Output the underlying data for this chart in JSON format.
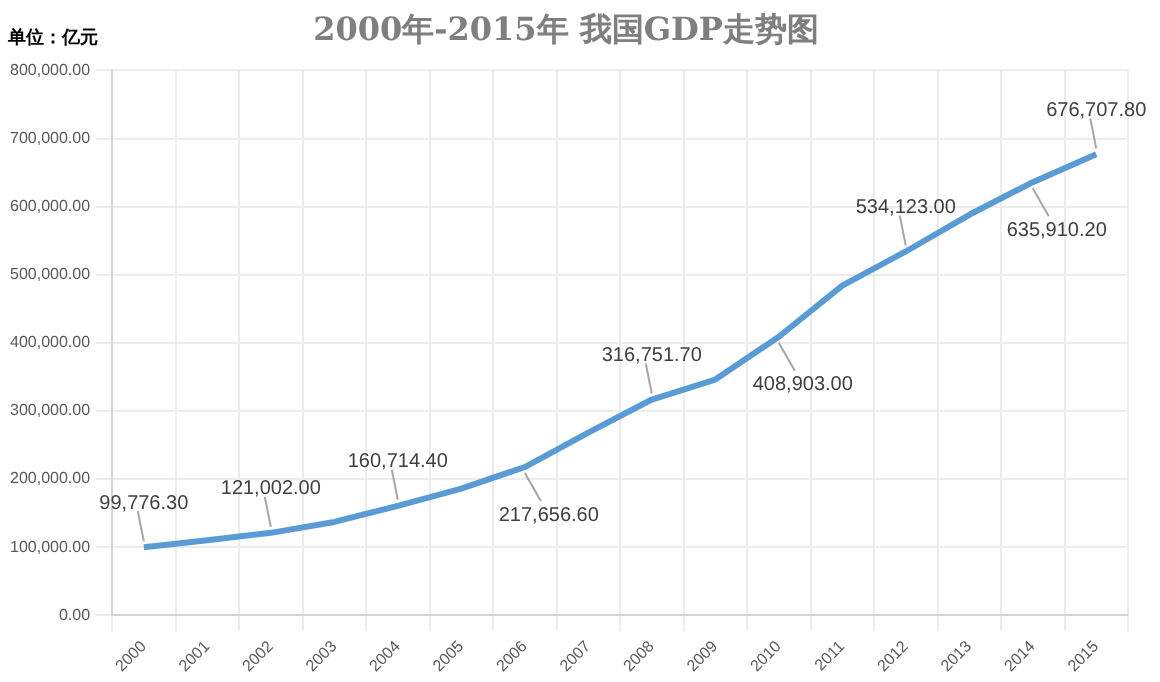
{
  "chart_data": {
    "type": "line",
    "title": "2000年-2015年 我国GDP走势图",
    "ylabel": "单位：亿元",
    "categories": [
      "2000",
      "2001",
      "2002",
      "2003",
      "2004",
      "2005",
      "2006",
      "2007",
      "2008",
      "2009",
      "2010",
      "2011",
      "2012",
      "2013",
      "2014",
      "2015"
    ],
    "series": [
      {
        "color": "#5b9bd5",
        "values": [
          99776.3,
          110000,
          121002,
          137000,
          160714.4,
          186000,
          217656.6,
          268000,
          316751.7,
          346000,
          408903,
          484000,
          534123,
          588000,
          635910.2,
          676707.8
        ],
        "value_labels": [
          "99,776.30",
          null,
          "121,002.00",
          null,
          "160,714.40",
          null,
          "217,656.60",
          null,
          "316,751.70",
          null,
          "408,903.00",
          null,
          "534,123.00",
          null,
          "635,910.20",
          "676,707.80"
        ]
      }
    ],
    "ylim": [
      0,
      800000
    ],
    "yticks": [
      {
        "value": 0,
        "label": "0.00"
      },
      {
        "value": 100000,
        "label": "100,000.00"
      },
      {
        "value": 200000,
        "label": "200,000.00"
      },
      {
        "value": 300000,
        "label": "300,000.00"
      },
      {
        "value": 400000,
        "label": "400,000.00"
      },
      {
        "value": 500000,
        "label": "500,000.00"
      },
      {
        "value": 600000,
        "label": "600,000.00"
      },
      {
        "value": 700000,
        "label": "700,000.00"
      },
      {
        "value": 800000,
        "label": "800,000.00"
      }
    ],
    "grid": true,
    "legend": false,
    "marker": "none",
    "line_style": "solid"
  }
}
